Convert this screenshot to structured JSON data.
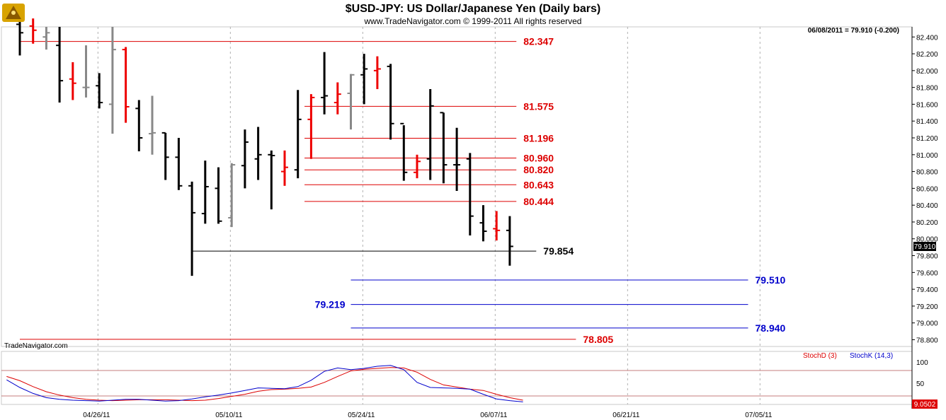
{
  "chart_data": [
    {
      "type": "ohlc",
      "title": "$USD-JPY:  US Dollar/Japanese Yen  (Daily bars)",
      "subtitle": "www.TradeNavigator.com © 1999-2011 All rights reserved",
      "watermark": "TradeNavigator.com",
      "last_quote": "06/08/2011 = 79.910 (-0.200)",
      "last_price_label": "79.910",
      "ylim": [
        78.72,
        82.52
      ],
      "y_ticks": [
        "82.400",
        "82.200",
        "82.000",
        "81.800",
        "81.600",
        "81.400",
        "81.200",
        "81.000",
        "80.800",
        "80.600",
        "80.400",
        "80.200",
        "80.000",
        "79.800",
        "79.600",
        "79.400",
        "79.200",
        "79.000",
        "78.800"
      ],
      "x_ticks": [
        "04/26/11",
        "05/10/11",
        "05/24/11",
        "06/07/11",
        "06/21/11",
        "07/05/11"
      ],
      "bar_colors": {
        "up": "#000000",
        "down": "#ee0000",
        "flat": "#888888"
      },
      "bars": [
        {
          "o": 82.55,
          "h": 82.62,
          "l": 82.18,
          "c": 82.45,
          "dir": "up"
        },
        {
          "o": 82.53,
          "h": 82.62,
          "l": 82.32,
          "c": 82.48,
          "dir": "down"
        },
        {
          "o": 82.4,
          "h": 82.52,
          "l": 82.25,
          "c": 82.45,
          "dir": "flat"
        },
        {
          "o": 82.3,
          "h": 82.52,
          "l": 81.62,
          "c": 81.88,
          "dir": "up"
        },
        {
          "o": 81.9,
          "h": 82.1,
          "l": 81.65,
          "c": 81.85,
          "dir": "down"
        },
        {
          "o": 81.8,
          "h": 82.3,
          "l": 81.68,
          "c": 81.8,
          "dir": "flat"
        },
        {
          "o": 81.82,
          "h": 81.97,
          "l": 81.55,
          "c": 81.62,
          "dir": "up"
        },
        {
          "o": 81.6,
          "h": 82.52,
          "l": 81.25,
          "c": 82.25,
          "dir": "flat"
        },
        {
          "o": 82.25,
          "h": 82.28,
          "l": 81.38,
          "c": 81.57,
          "dir": "down"
        },
        {
          "o": 81.55,
          "h": 81.65,
          "l": 81.04,
          "c": 81.2,
          "dir": "up"
        },
        {
          "o": 81.25,
          "h": 81.7,
          "l": 81.0,
          "c": 81.26,
          "dir": "flat"
        },
        {
          "o": 81.26,
          "h": 81.26,
          "l": 80.7,
          "c": 80.97,
          "dir": "up"
        },
        {
          "o": 80.97,
          "h": 81.2,
          "l": 80.58,
          "c": 80.63,
          "dir": "up"
        },
        {
          "o": 80.63,
          "h": 80.68,
          "l": 79.56,
          "c": 80.31,
          "dir": "up"
        },
        {
          "o": 80.3,
          "h": 80.93,
          "l": 80.18,
          "c": 80.62,
          "dir": "up"
        },
        {
          "o": 80.6,
          "h": 80.85,
          "l": 80.18,
          "c": 80.21,
          "dir": "up"
        },
        {
          "o": 80.25,
          "h": 80.9,
          "l": 80.14,
          "c": 80.88,
          "dir": "flat"
        },
        {
          "o": 80.87,
          "h": 81.3,
          "l": 80.6,
          "c": 81.15,
          "dir": "up"
        },
        {
          "o": 80.95,
          "h": 81.33,
          "l": 80.7,
          "c": 81.0,
          "dir": "up"
        },
        {
          "o": 81.0,
          "h": 81.05,
          "l": 80.35,
          "c": 80.99,
          "dir": "up"
        },
        {
          "o": 80.8,
          "h": 81.05,
          "l": 80.63,
          "c": 80.85,
          "dir": "down"
        },
        {
          "o": 80.82,
          "h": 81.77,
          "l": 80.72,
          "c": 81.42,
          "dir": "up"
        },
        {
          "o": 81.42,
          "h": 81.72,
          "l": 80.95,
          "c": 81.68,
          "dir": "down"
        },
        {
          "o": 81.68,
          "h": 82.22,
          "l": 81.48,
          "c": 81.7,
          "dir": "up"
        },
        {
          "o": 81.62,
          "h": 81.86,
          "l": 81.48,
          "c": 81.72,
          "dir": "down"
        },
        {
          "o": 81.73,
          "h": 81.96,
          "l": 81.3,
          "c": 81.95,
          "dir": "flat"
        },
        {
          "o": 81.95,
          "h": 82.2,
          "l": 81.6,
          "c": 82.02,
          "dir": "up"
        },
        {
          "o": 82.0,
          "h": 82.17,
          "l": 81.78,
          "c": 82.02,
          "dir": "down"
        },
        {
          "o": 82.05,
          "h": 82.08,
          "l": 81.18,
          "c": 81.37,
          "dir": "up"
        },
        {
          "o": 81.37,
          "h": 81.35,
          "l": 80.69,
          "c": 80.79,
          "dir": "up"
        },
        {
          "o": 80.79,
          "h": 81.0,
          "l": 80.72,
          "c": 80.92,
          "dir": "down"
        },
        {
          "o": 80.95,
          "h": 81.78,
          "l": 80.7,
          "c": 81.58,
          "dir": "up"
        },
        {
          "o": 81.5,
          "h": 81.5,
          "l": 80.66,
          "c": 80.88,
          "dir": "up"
        },
        {
          "o": 80.88,
          "h": 81.32,
          "l": 80.57,
          "c": 80.88,
          "dir": "up"
        },
        {
          "o": 80.95,
          "h": 81.02,
          "l": 80.04,
          "c": 80.27,
          "dir": "up"
        },
        {
          "o": 80.19,
          "h": 80.4,
          "l": 79.97,
          "c": 80.09,
          "dir": "up"
        },
        {
          "o": 80.12,
          "h": 80.33,
          "l": 79.98,
          "c": 80.1,
          "dir": "down"
        },
        {
          "o": 80.1,
          "h": 80.27,
          "l": 79.68,
          "c": 79.91,
          "dir": "up"
        }
      ],
      "levels": [
        {
          "value": 82.347,
          "label": "82.347",
          "color": "#dd0000",
          "from": 0,
          "to": 37.5,
          "label_side": "right"
        },
        {
          "value": 81.575,
          "label": "81.575",
          "color": "#dd0000",
          "from": 21.5,
          "to": 37.5,
          "label_side": "right"
        },
        {
          "value": 81.196,
          "label": "81.196",
          "color": "#dd0000",
          "from": 21.5,
          "to": 37.5,
          "label_side": "right"
        },
        {
          "value": 80.96,
          "label": "80.960",
          "color": "#dd0000",
          "from": 21.5,
          "to": 37.5,
          "label_side": "right"
        },
        {
          "value": 80.82,
          "label": "80.820",
          "color": "#dd0000",
          "from": 21.5,
          "to": 37.5,
          "label_side": "right"
        },
        {
          "value": 80.643,
          "label": "80.643",
          "color": "#dd0000",
          "from": 21.5,
          "to": 37.5,
          "label_side": "right"
        },
        {
          "value": 80.444,
          "label": "80.444",
          "color": "#dd0000",
          "from": 21.5,
          "to": 37.5,
          "label_side": "right"
        },
        {
          "value": 79.854,
          "label": "79.854",
          "color": "#000000",
          "from": 13,
          "to": 39,
          "label_side": "right"
        },
        {
          "value": 79.51,
          "label": "79.510",
          "color": "#0000cc",
          "from": 25,
          "to": 55,
          "label_side": "right"
        },
        {
          "value": 79.219,
          "label": "79.219",
          "color": "#0000cc",
          "from": 25,
          "to": 55,
          "label_side": "left"
        },
        {
          "value": 78.94,
          "label": "78.940",
          "color": "#0000cc",
          "from": 25,
          "to": 55,
          "label_side": "right"
        },
        {
          "value": 78.805,
          "label": "78.805",
          "color": "#dd0000",
          "from": 0,
          "to": 42,
          "label_side": "right"
        }
      ]
    },
    {
      "type": "line",
      "indicator": "Stochastic",
      "ylim": [
        0,
        100
      ],
      "y_ticks": [
        "100",
        "50"
      ],
      "ref_lines": [
        80,
        20
      ],
      "legend": [
        {
          "name": "StochD (3)",
          "color": "#dd0000"
        },
        {
          "name": "StochK (14,3)",
          "color": "#0000cc"
        }
      ],
      "last_value_label": "9.0502",
      "series": [
        {
          "name": "StochD (3)",
          "color": "#dd0000",
          "values": [
            66,
            56,
            42,
            30,
            22,
            16,
            12,
            10,
            9,
            10,
            11,
            11,
            11,
            10,
            9,
            10,
            14,
            19,
            24,
            31,
            35,
            36,
            38,
            41,
            52,
            66,
            79,
            83,
            85,
            87,
            86,
            76,
            59,
            46,
            41,
            36,
            33,
            24,
            16,
            10
          ]
        },
        {
          "name": "StochK (14,3)",
          "color": "#0000cc",
          "values": [
            58,
            40,
            26,
            16,
            12,
            10,
            9,
            8,
            10,
            12,
            12,
            10,
            8,
            9,
            13,
            18,
            22,
            27,
            33,
            39,
            38,
            37,
            42,
            57,
            78,
            86,
            82,
            85,
            90,
            92,
            82,
            52,
            40,
            39,
            38,
            36,
            24,
            13,
            9,
            6
          ]
        }
      ]
    }
  ]
}
